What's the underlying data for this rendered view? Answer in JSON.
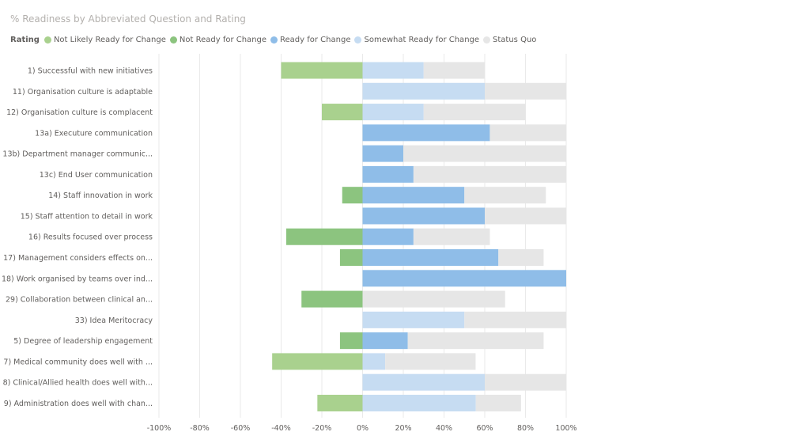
{
  "chart_data": {
    "type": "bar",
    "orientation": "horizontal",
    "stacked": "diverging",
    "title": "% Readiness by Abbreviated Question and Rating",
    "legend": {
      "title": "Rating",
      "placement": "top-left",
      "entries": [
        {
          "name": "Not Likely Ready for Change",
          "color": "#A9D18E"
        },
        {
          "name": "Not Ready for Change",
          "color": "#8CC47F"
        },
        {
          "name": "Ready for Change",
          "color": "#8FBDE8"
        },
        {
          "name": "Somewhat Ready for Change",
          "color": "#C6DCF2"
        },
        {
          "name": "Status Quo",
          "color": "#E6E6E6"
        }
      ]
    },
    "categories": [
      "1) Successful with new initiatives",
      "11) Organisation culture is adaptable",
      "12) Organisation culture is complacent",
      "13a) Executure communication",
      "13b) Department manager communic...",
      "13c) End User communication",
      "14) Staff innovation in work",
      "15) Staff attention to detail in work",
      "16) Results focused over process",
      "17) Management considers effects on...",
      "18) Work organised by teams over ind...",
      "29) Collaboration between clinical an...",
      "33) Idea Meritocracy",
      "5) Degree of leadership engagement",
      "7) Medical community does well with ...",
      "8) Clinical/Allied health does well with...",
      "9) Administration does well with chan..."
    ],
    "series": [
      {
        "name": "Not Likely Ready for Change",
        "values": [
          -40,
          0,
          -20,
          0,
          0,
          0,
          0,
          0,
          0,
          0,
          0,
          0,
          0,
          0,
          -44.4,
          0,
          -22.2
        ]
      },
      {
        "name": "Not Ready for Change",
        "values": [
          0,
          0,
          0,
          0,
          0,
          0,
          -10,
          0,
          -37.5,
          -11.1,
          0,
          -30,
          0,
          -11.1,
          0,
          0,
          0
        ]
      },
      {
        "name": "Ready for Change",
        "values": [
          0,
          0,
          0,
          62.5,
          20,
          25,
          50,
          60,
          25,
          66.7,
          100,
          0,
          0,
          22.2,
          0,
          0,
          0
        ]
      },
      {
        "name": "Somewhat Ready for Change",
        "values": [
          30,
          60,
          30,
          0,
          0,
          0,
          0,
          0,
          0,
          0,
          0,
          0,
          50,
          0,
          11.1,
          60,
          55.6
        ]
      },
      {
        "name": "Status Quo",
        "values": [
          30,
          40,
          50,
          37.5,
          80,
          75,
          40,
          40,
          37.5,
          22.2,
          0,
          70,
          50,
          66.7,
          44.4,
          40,
          22.2
        ]
      }
    ],
    "x_ticks": [
      "-100%",
      "-80%",
      "-60%",
      "-40%",
      "-20%",
      "0%",
      "20%",
      "40%",
      "60%",
      "80%",
      "100%"
    ],
    "xlim": [
      -100,
      100
    ],
    "grid": true
  }
}
